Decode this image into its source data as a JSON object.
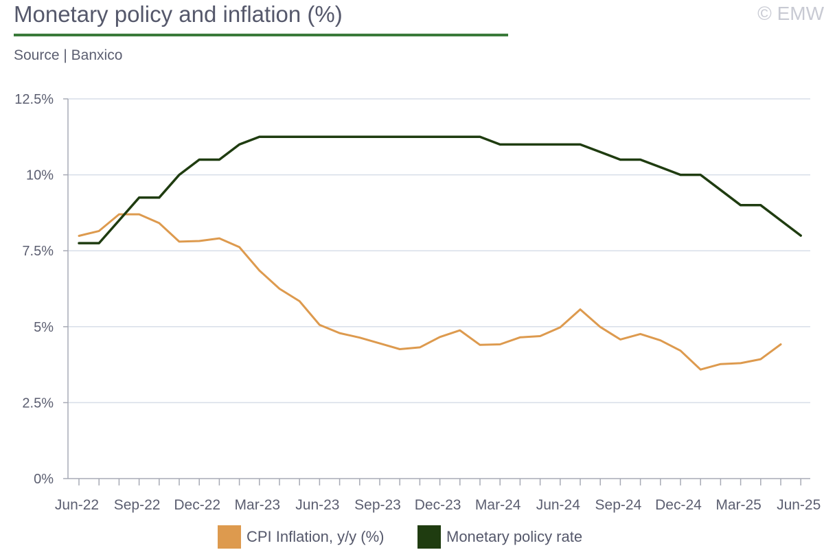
{
  "header": {
    "title": "Monetary policy and inflation (%)",
    "copyright": "© EMW",
    "source": "Source | Banxico"
  },
  "colors": {
    "cpi": "#dd9a4e",
    "policy_rate": "#1f3c10",
    "title_rule": "#3a7a3a",
    "grid": "#d7dee8",
    "axis": "#a7aab5"
  },
  "chart_data": {
    "type": "line",
    "title": "Monetary policy and inflation (%)",
    "xlabel": "",
    "ylabel": "",
    "ylim": [
      0,
      12.5
    ],
    "y_ticks": [
      0,
      2.5,
      5,
      7.5,
      10,
      12.5
    ],
    "y_tick_labels": [
      "0%",
      "2.5%",
      "5%",
      "7.5%",
      "10%",
      "12.5%"
    ],
    "x": [
      "Jun-22",
      "Jul-22",
      "Aug-22",
      "Sep-22",
      "Oct-22",
      "Nov-22",
      "Dec-22",
      "Jan-23",
      "Feb-23",
      "Mar-23",
      "Apr-23",
      "May-23",
      "Jun-23",
      "Jul-23",
      "Aug-23",
      "Sep-23",
      "Oct-23",
      "Nov-23",
      "Dec-23",
      "Jan-24",
      "Feb-24",
      "Mar-24",
      "Apr-24",
      "May-24",
      "Jun-24",
      "Jul-24",
      "Aug-24",
      "Sep-24",
      "Oct-24",
      "Nov-24",
      "Dec-24",
      "Jan-25",
      "Feb-25",
      "Mar-25",
      "Apr-25",
      "May-25",
      "Jun-25"
    ],
    "x_tick_labels": [
      "Jun-22",
      "Sep-22",
      "Dec-22",
      "Mar-23",
      "Jun-23",
      "Sep-23",
      "Dec-23",
      "Mar-24",
      "Jun-24",
      "Sep-24",
      "Dec-24",
      "Mar-25",
      "Jun-25"
    ],
    "grid": true,
    "legend_position": "bottom",
    "series": [
      {
        "name": "CPI Inflation, y/y (%)",
        "color": "#dd9a4e",
        "values": [
          7.99,
          8.15,
          8.7,
          8.7,
          8.41,
          7.8,
          7.82,
          7.91,
          7.62,
          6.85,
          6.25,
          5.84,
          5.06,
          4.79,
          4.64,
          4.45,
          4.26,
          4.32,
          4.66,
          4.88,
          4.4,
          4.42,
          4.65,
          4.69,
          4.98,
          5.57,
          4.99,
          4.58,
          4.76,
          4.55,
          4.21,
          3.59,
          3.77,
          3.8,
          3.93,
          4.42,
          null
        ]
      },
      {
        "name": "Monetary policy rate",
        "color": "#1f3c10",
        "values": [
          7.75,
          7.75,
          8.5,
          9.25,
          9.25,
          10.0,
          10.5,
          10.5,
          11.0,
          11.25,
          11.25,
          11.25,
          11.25,
          11.25,
          11.25,
          11.25,
          11.25,
          11.25,
          11.25,
          11.25,
          11.25,
          11.0,
          11.0,
          11.0,
          11.0,
          11.0,
          10.75,
          10.5,
          10.5,
          10.25,
          10.0,
          10.0,
          9.5,
          9.0,
          9.0,
          8.5,
          8.0
        ]
      }
    ]
  }
}
